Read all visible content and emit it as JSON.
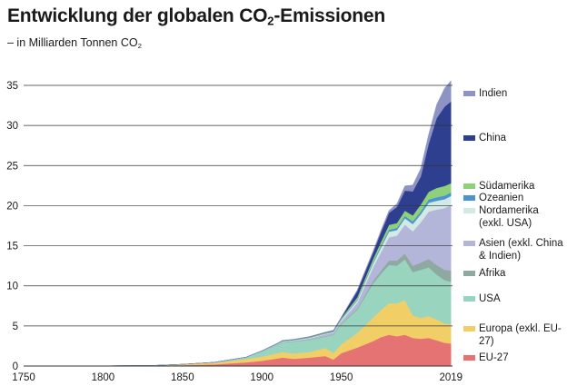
{
  "title_main": "Entwicklung der globalen CO",
  "title_sub": "2",
  "title_rest": "-Emissionen",
  "subtitle_main": "– in Milliarden Tonnen CO",
  "subtitle_sub": "2",
  "chart_data": {
    "type": "area",
    "stacked": true,
    "x_ticks": [
      1750,
      1800,
      1850,
      1900,
      1950,
      2019
    ],
    "y_ticks": [
      0,
      5,
      10,
      15,
      20,
      25,
      30,
      35
    ],
    "ylim": [
      0,
      35
    ],
    "xlim": [
      1750,
      2020
    ],
    "grid": "horizontal",
    "legend_placement": "right",
    "x": [
      1750,
      1800,
      1830,
      1850,
      1870,
      1890,
      1900,
      1910,
      1913,
      1920,
      1930,
      1940,
      1945,
      1950,
      1960,
      1970,
      1975,
      1980,
      1985,
      1990,
      1995,
      2000,
      2005,
      2010,
      2015,
      2019
    ],
    "series": [
      {
        "name": "EU-27",
        "color": "#e57373",
        "values": [
          0,
          0.01,
          0.03,
          0.1,
          0.2,
          0.45,
          0.65,
          0.95,
          1.05,
          0.9,
          1.05,
          1.25,
          0.8,
          1.6,
          2.3,
          3.1,
          3.6,
          3.9,
          3.7,
          3.9,
          3.5,
          3.4,
          3.5,
          3.2,
          2.9,
          2.8
        ]
      },
      {
        "name": "Europa (exkl. EU-27)",
        "color": "#f2cf66",
        "values": [
          0,
          0.01,
          0.03,
          0.1,
          0.2,
          0.4,
          0.5,
          0.65,
          0.7,
          0.65,
          0.7,
          1.0,
          0.8,
          1.1,
          1.8,
          2.9,
          3.4,
          3.9,
          4.1,
          4.3,
          2.8,
          2.6,
          2.7,
          2.6,
          2.4,
          2.4
        ]
      },
      {
        "name": "USA",
        "color": "#99d4bf",
        "values": [
          0,
          0,
          0,
          0.01,
          0.05,
          0.2,
          0.65,
          1.05,
          1.2,
          1.5,
          1.5,
          1.4,
          2.3,
          2.5,
          2.9,
          4.3,
          4.5,
          4.8,
          4.7,
          5.1,
          5.4,
          6.0,
          6.1,
          5.6,
          5.4,
          5.3
        ]
      },
      {
        "name": "Afrika",
        "color": "#8fa9a2",
        "values": [
          0,
          0,
          0,
          0,
          0,
          0.005,
          0.01,
          0.02,
          0.02,
          0.03,
          0.04,
          0.05,
          0.06,
          0.07,
          0.15,
          0.3,
          0.38,
          0.55,
          0.65,
          0.72,
          0.8,
          0.9,
          1.05,
          1.2,
          1.3,
          1.4
        ]
      },
      {
        "name": "Asien (exkl. China & Indien)",
        "color": "#b3b5d9",
        "values": [
          0,
          0,
          0,
          0,
          0,
          0.01,
          0.02,
          0.05,
          0.06,
          0.08,
          0.15,
          0.25,
          0.2,
          0.3,
          0.7,
          1.7,
          2.3,
          2.9,
          3.1,
          3.6,
          4.3,
          5.0,
          5.9,
          6.9,
          7.7,
          8.2
        ]
      },
      {
        "name": "Nordamerika (exkl. USA)",
        "color": "#d2e9e4",
        "values": [
          0,
          0,
          0,
          0,
          0.01,
          0.02,
          0.03,
          0.05,
          0.06,
          0.07,
          0.08,
          0.08,
          0.09,
          0.2,
          0.3,
          0.5,
          0.6,
          0.7,
          0.7,
          0.8,
          0.9,
          1.0,
          1.1,
          1.1,
          1.1,
          1.1
        ]
      },
      {
        "name": "Ozeanien",
        "color": "#4a95d1",
        "values": [
          0,
          0,
          0,
          0,
          0.005,
          0.01,
          0.01,
          0.02,
          0.02,
          0.02,
          0.03,
          0.03,
          0.04,
          0.05,
          0.1,
          0.15,
          0.2,
          0.25,
          0.28,
          0.3,
          0.33,
          0.37,
          0.42,
          0.45,
          0.45,
          0.44
        ]
      },
      {
        "name": "Südamerika",
        "color": "#8fd07a",
        "values": [
          0,
          0,
          0,
          0,
          0.005,
          0.01,
          0.02,
          0.04,
          0.05,
          0.05,
          0.07,
          0.08,
          0.08,
          0.15,
          0.3,
          0.4,
          0.5,
          0.6,
          0.6,
          0.65,
          0.75,
          0.85,
          0.95,
          1.15,
          1.2,
          1.15
        ]
      },
      {
        "name": "China",
        "color": "#2f3f8f",
        "values": [
          0,
          0,
          0,
          0,
          0,
          0,
          0.01,
          0.02,
          0.02,
          0.02,
          0.03,
          0.05,
          0.05,
          0.08,
          0.8,
          0.8,
          1.2,
          1.5,
          2.0,
          2.5,
          3.0,
          3.5,
          6.0,
          8.7,
          9.9,
          10.2
        ]
      },
      {
        "name": "Indien",
        "color": "#8d94c4",
        "values": [
          0,
          0,
          0,
          0,
          0,
          0.005,
          0.01,
          0.02,
          0.02,
          0.02,
          0.03,
          0.03,
          0.04,
          0.05,
          0.12,
          0.2,
          0.25,
          0.3,
          0.4,
          0.6,
          0.8,
          1.0,
          1.2,
          1.7,
          2.3,
          2.6
        ]
      }
    ]
  }
}
